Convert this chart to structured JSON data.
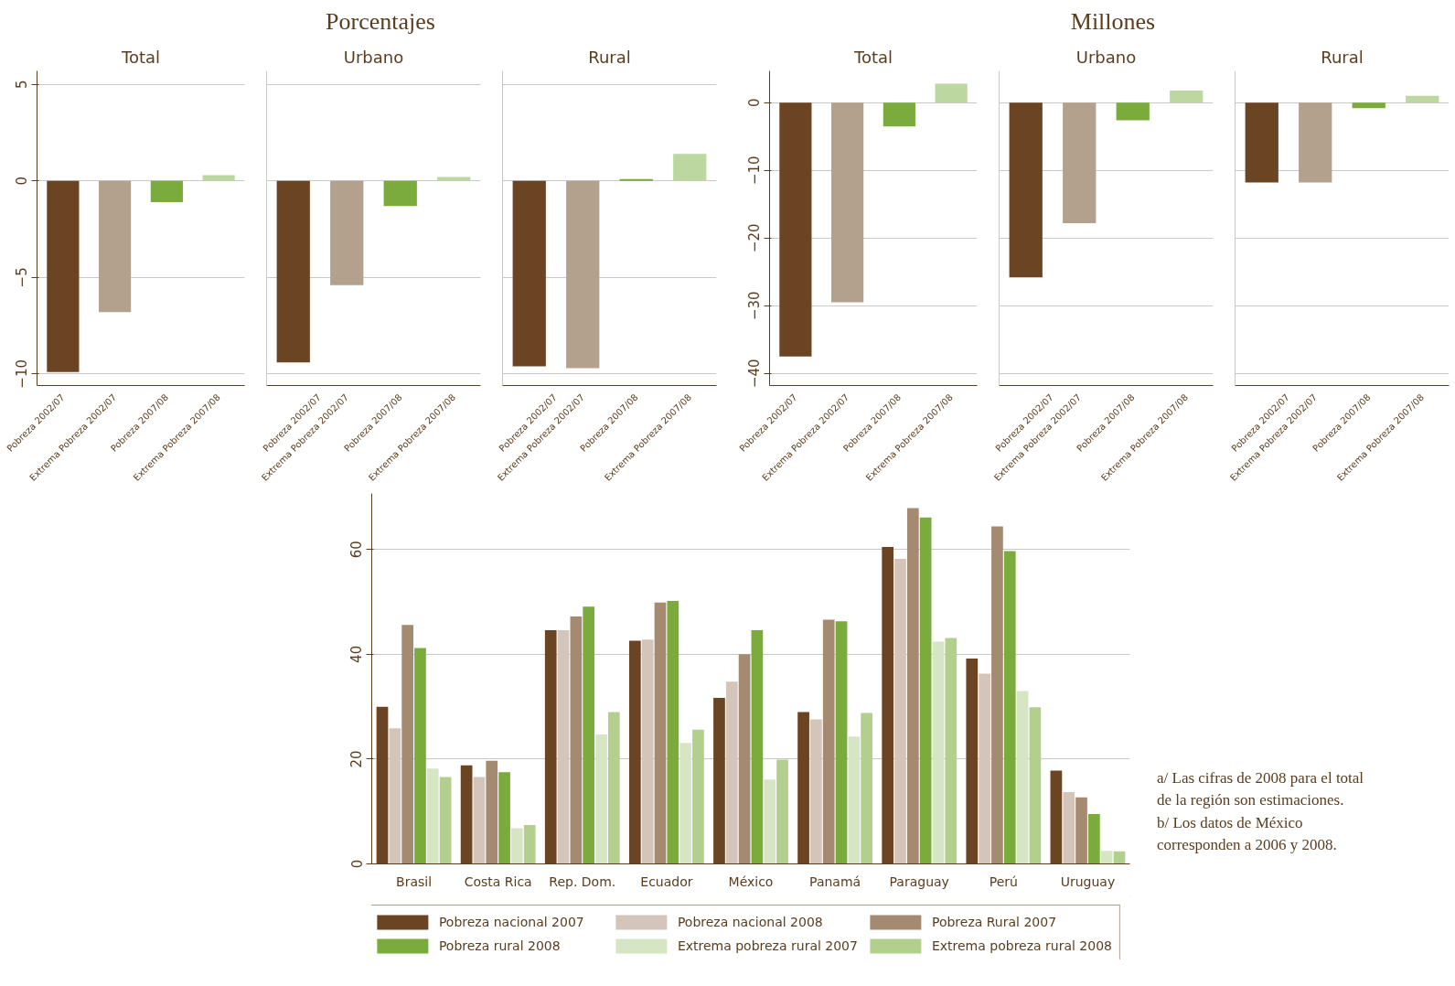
{
  "chart_data": [
    {
      "type": "bar",
      "subtitle": "Total",
      "categories": [
        "Pobreza 2002/07",
        "Extrema Pobreza 2002/07",
        "Pobreza 2007/08",
        "Extrema Pobreza 2007/08"
      ],
      "values": [
        -9.9,
        -6.8,
        -1.1,
        0.3
      ],
      "colors": [
        "#6b4423",
        "#b3a08d",
        "#7aab3c",
        "#bdd7a0"
      ],
      "ylim": [
        -10.6,
        5.7
      ],
      "yticks": [
        -10,
        -5,
        0,
        5
      ],
      "grid": "y"
    },
    {
      "type": "bar",
      "title": "Porcentajes",
      "subtitle": "Urbano",
      "categories": [
        "Pobreza 2002/07",
        "Extrema Pobreza 2002/07",
        "Pobreza 2007/08",
        "Extrema Pobreza 2007/08"
      ],
      "values": [
        -9.4,
        -5.4,
        -1.3,
        0.2
      ],
      "colors": [
        "#6b4423",
        "#b3a08d",
        "#7aab3c",
        "#bdd7a0"
      ],
      "ylim": [
        -10.6,
        5.7
      ],
      "yticks": [
        -10,
        -5,
        0,
        5
      ],
      "grid": "y",
      "tick_labels": "x"
    },
    {
      "type": "bar",
      "subtitle": "Rural",
      "categories": [
        "Pobreza 2002/07",
        "Extrema Pobreza 2002/07",
        "Pobreza 2007/08",
        "Extrema Pobreza 2007/08"
      ],
      "values": [
        -9.6,
        -9.7,
        0.1,
        1.4
      ],
      "colors": [
        "#6b4423",
        "#b3a08d",
        "#7aab3c",
        "#bdd7a0"
      ],
      "ylim": [
        -10.6,
        5.7
      ],
      "yticks": [
        -10,
        -5,
        0,
        5
      ],
      "grid": "y",
      "tick_labels": "x"
    },
    {
      "type": "bar",
      "subtitle": "Total",
      "categories": [
        "Pobreza 2002/07",
        "Extrema Pobreza 2002/07",
        "Pobreza 2007/08",
        "Extrema Pobreza 2007/08"
      ],
      "values": [
        -37.5,
        -29.5,
        -3.5,
        2.8
      ],
      "colors": [
        "#6b4423",
        "#b3a08d",
        "#7aab3c",
        "#bdd7a0"
      ],
      "ylim": [
        -41.8,
        4.7
      ],
      "yticks": [
        -40,
        -30,
        -20,
        -10,
        0
      ],
      "grid": "y"
    },
    {
      "type": "bar",
      "title": "Millones",
      "subtitle": "Urbano",
      "categories": [
        "Pobreza 2002/07",
        "Extrema Pobreza 2002/07",
        "Pobreza 2007/08",
        "Extrema Pobreza 2007/08"
      ],
      "values": [
        -25.8,
        -17.8,
        -2.6,
        1.8
      ],
      "colors": [
        "#6b4423",
        "#b3a08d",
        "#7aab3c",
        "#bdd7a0"
      ],
      "ylim": [
        -41.8,
        4.7
      ],
      "yticks": [
        -40,
        -30,
        -20,
        -10,
        0
      ],
      "grid": "y",
      "tick_labels": "x"
    },
    {
      "type": "bar",
      "subtitle": "Rural",
      "categories": [
        "Pobreza 2002/07",
        "Extrema Pobreza 2002/07",
        "Pobreza 2007/08",
        "Extrema Pobreza 2007/08"
      ],
      "values": [
        -11.8,
        -11.8,
        -0.8,
        1.0
      ],
      "colors": [
        "#6b4423",
        "#b3a08d",
        "#7aab3c",
        "#bdd7a0"
      ],
      "ylim": [
        -41.8,
        4.7
      ],
      "yticks": [
        -40,
        -30,
        -20,
        -10,
        0
      ],
      "grid": "y",
      "tick_labels": "x"
    },
    {
      "type": "bar",
      "categories": [
        "Brasil",
        "Costa Rica",
        "Rep. Dom.",
        "Ecuador",
        "México",
        "Panamá",
        "Paraguay",
        "Perú",
        "Uruguay"
      ],
      "ylim": [
        0,
        70.7
      ],
      "yticks": [
        0,
        20,
        40,
        60
      ],
      "grid": "y",
      "legend": "bottom",
      "series": [
        {
          "name": "Pobreza nacional 2007",
          "color": "#6b4423",
          "values": [
            30.0,
            18.8,
            44.6,
            42.6,
            31.7,
            29.0,
            60.5,
            39.2,
            17.8
          ]
        },
        {
          "name": "Pobreza nacional 2008",
          "color": "#d4c5bb",
          "values": [
            25.9,
            16.6,
            44.6,
            42.8,
            34.8,
            27.6,
            58.2,
            36.3,
            13.7
          ]
        },
        {
          "name": "Pobreza Rural 2007",
          "color": "#a58a72",
          "values": [
            45.6,
            19.7,
            47.2,
            49.9,
            40.0,
            46.6,
            67.9,
            64.4,
            12.7
          ]
        },
        {
          "name": "Pobreza rural 2008",
          "color": "#7aab3c",
          "values": [
            41.2,
            17.5,
            49.1,
            50.2,
            44.6,
            46.3,
            66.1,
            59.7,
            9.5
          ]
        },
        {
          "name": "Extrema pobreza rural 2007",
          "color": "#d6e6c4",
          "values": [
            18.2,
            6.8,
            24.7,
            23.1,
            16.1,
            24.3,
            42.4,
            33.0,
            2.5
          ]
        },
        {
          "name": "Extrema pobreza rural 2008",
          "color": "#b2cf8e",
          "values": [
            16.6,
            7.4,
            29.0,
            25.6,
            19.9,
            28.8,
            43.1,
            29.9,
            2.4
          ]
        }
      ],
      "annotations": [
        "a/ Las cifras de 2008 para el total de la región son estimaciones.",
        "b/ Los datos de México corresponden a 2006 y 2008."
      ]
    }
  ]
}
